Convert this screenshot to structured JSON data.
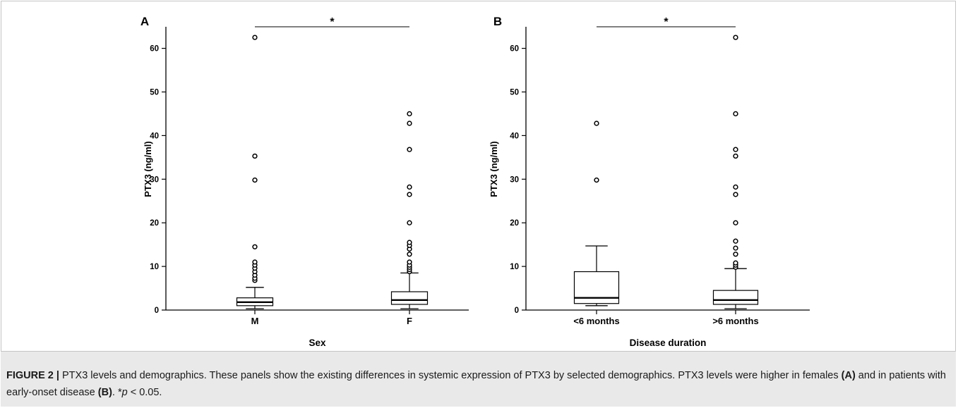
{
  "caption": {
    "figure_label": "FIGURE 2 |",
    "text1": " PTX3 levels and demographics. These panels show the existing differences in systemic expression of PTX3 by selected demographics. PTX3 levels were higher in females ",
    "ref_a": "(A)",
    "text2": " and in patients with early-onset disease ",
    "ref_b": "(B)",
    "text3": ". *",
    "p_symbol": "p",
    "text4": " < 0.05."
  },
  "chart_data": [
    {
      "type": "box",
      "panel_label": "A",
      "xlabel": "Sex",
      "ylabel": "PTX3 (ng/ml)",
      "ylim": [
        0,
        65
      ],
      "yticks": [
        0,
        10,
        20,
        30,
        40,
        50,
        60
      ],
      "categories": [
        "M",
        "F"
      ],
      "boxes": [
        {
          "category": "M",
          "whisker_low": 0.3,
          "q1": 1.0,
          "median": 1.8,
          "q3": 2.8,
          "whisker_high": 5.2,
          "outliers": [
            6.8,
            7.3,
            8.0,
            8.8,
            9.6,
            10.3,
            11.0,
            14.5,
            29.8,
            35.3,
            62.5
          ]
        },
        {
          "category": "F",
          "whisker_low": 0.3,
          "q1": 1.3,
          "median": 2.3,
          "q3": 4.2,
          "whisker_high": 8.5,
          "outliers": [
            8.8,
            9.3,
            9.8,
            10.3,
            11.0,
            12.8,
            14.0,
            14.8,
            15.5,
            20.0,
            26.5,
            28.2,
            36.8,
            42.8,
            45.0
          ]
        }
      ],
      "significance": {
        "label": "*",
        "between": [
          "M",
          "F"
        ]
      }
    },
    {
      "type": "box",
      "panel_label": "B",
      "xlabel": "Disease duration",
      "ylabel": "PTX3 (ng/ml)",
      "ylim": [
        0,
        65
      ],
      "yticks": [
        0,
        10,
        20,
        30,
        40,
        50,
        60
      ],
      "categories": [
        "<6 months",
        ">6 months"
      ],
      "boxes": [
        {
          "category": "<6 months",
          "whisker_low": 1.0,
          "q1": 1.5,
          "median": 2.8,
          "q3": 8.8,
          "whisker_high": 14.7,
          "outliers": [
            29.8,
            42.8
          ]
        },
        {
          "category": ">6 months",
          "whisker_low": 0.3,
          "q1": 1.3,
          "median": 2.3,
          "q3": 4.5,
          "whisker_high": 9.5,
          "outliers": [
            9.8,
            10.3,
            10.8,
            12.8,
            14.2,
            15.8,
            20.0,
            26.5,
            28.2,
            35.3,
            36.8,
            45.0,
            62.5
          ]
        }
      ],
      "significance": {
        "label": "*",
        "between": [
          "<6 months",
          ">6 months"
        ]
      }
    }
  ]
}
